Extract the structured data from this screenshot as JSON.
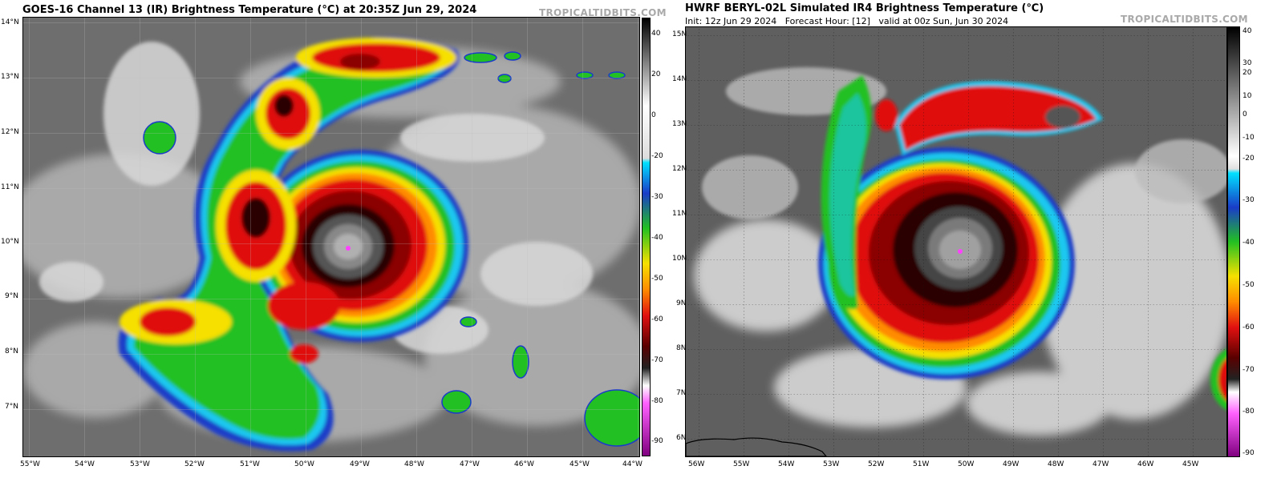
{
  "left": {
    "title": "GOES-16 Channel 13 (IR) Brightness Temperature (°C) at 20:35Z Jun 29, 2024",
    "watermark": "TROPICALTIDBITS.COM",
    "lat_labels": [
      "14°N",
      "13°N",
      "12°N",
      "11°N",
      "10°N",
      "9°N",
      "8°N",
      "7°N"
    ],
    "lon_labels": [
      "55°W",
      "54°W",
      "53°W",
      "52°W",
      "51°W",
      "50°W",
      "49°W",
      "48°W",
      "47°W",
      "46°W",
      "45°W",
      "44°W"
    ],
    "colorbar_ticks": [
      "40",
      "20",
      "0",
      "-20",
      "-30",
      "-40",
      "-50",
      "-60",
      "-70",
      "-80",
      "-90"
    ]
  },
  "right": {
    "title": "HWRF BERYL-02L Simulated IR4 Brightness Temperature (℃)",
    "init": "Init: 12z Jun 29 2024",
    "forecast_hour": "Forecast Hour: [12]",
    "valid": "valid at 00z Sun, Jun 30 2024",
    "watermark": "TROPICALTIDBITS.COM",
    "lat_labels": [
      "15N",
      "14N",
      "13N",
      "12N",
      "11N",
      "10N",
      "9N",
      "8N",
      "7N",
      "6N"
    ],
    "lon_labels": [
      "56W",
      "55W",
      "54W",
      "53W",
      "52W",
      "51W",
      "50W",
      "49W",
      "48W",
      "47W",
      "46W",
      "45W"
    ],
    "colorbar_ticks": [
      "40",
      "30",
      "20",
      "10",
      "0",
      "-10",
      "-20",
      "-30",
      "-40",
      "-50",
      "-60",
      "-70",
      "-80",
      "-90"
    ]
  },
  "colors": {
    "cold_black": "#1a0000",
    "deep_red": "#8b0000",
    "red": "#e01010",
    "orange": "#ff8c00",
    "yellow": "#f5e000",
    "green": "#22c022",
    "blue": "#1a3cc8",
    "cyan": "#1ec8f0",
    "cloud_white": "#e8e8e8",
    "clear_gray": "#6e6e6e",
    "magenta": "#ff40ff"
  }
}
